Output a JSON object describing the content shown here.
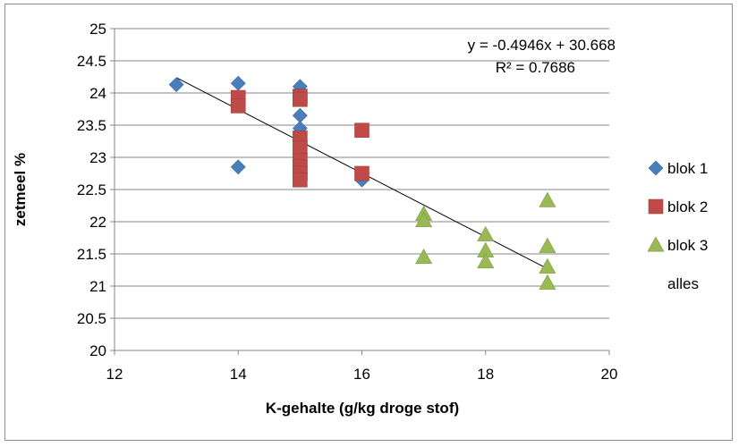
{
  "chart_data": {
    "type": "scatter",
    "title": "",
    "xlabel": "K-gehalte (g/kg droge stof)",
    "ylabel": "zetmeel %",
    "xlim": [
      12,
      20
    ],
    "ylim": [
      20,
      25
    ],
    "xticks": [
      12,
      14,
      16,
      18,
      20
    ],
    "yticks": [
      20,
      20.5,
      21,
      21.5,
      22,
      22.5,
      23,
      23.5,
      24,
      24.5,
      25
    ],
    "grid": "horizontal",
    "legend_position": "right",
    "series": [
      {
        "name": "blok 1",
        "marker": "diamond",
        "color": "#4a7ebb",
        "points": [
          [
            13,
            24.13
          ],
          [
            14,
            24.15
          ],
          [
            14,
            22.85
          ],
          [
            15,
            24.1
          ],
          [
            15,
            23.9
          ],
          [
            15,
            23.65
          ],
          [
            15,
            23.45
          ],
          [
            15,
            23.2
          ],
          [
            16,
            22.65
          ]
        ]
      },
      {
        "name": "blok 2",
        "marker": "square",
        "color": "#be4b48",
        "points": [
          [
            14,
            23.93
          ],
          [
            14,
            23.8
          ],
          [
            15,
            23.95
          ],
          [
            15,
            23.9
          ],
          [
            15,
            23.3
          ],
          [
            15,
            23.15
          ],
          [
            15,
            22.95
          ],
          [
            15,
            22.85
          ],
          [
            15,
            22.75
          ],
          [
            15,
            22.65
          ],
          [
            16,
            23.42
          ],
          [
            16,
            22.75
          ]
        ]
      },
      {
        "name": "blok 3",
        "marker": "triangle",
        "color": "#98b954",
        "points": [
          [
            17,
            22.12
          ],
          [
            17,
            22.02
          ],
          [
            17,
            21.45
          ],
          [
            18,
            21.8
          ],
          [
            18,
            21.55
          ],
          [
            18,
            21.38
          ],
          [
            19,
            22.33
          ],
          [
            19,
            21.62
          ],
          [
            19,
            21.3
          ],
          [
            19,
            21.05
          ]
        ]
      },
      {
        "name": "alles",
        "marker": "none",
        "color": "#000000",
        "points": []
      }
    ],
    "trendline": {
      "x_range": [
        13,
        19
      ],
      "slope": -0.4946,
      "intercept": 30.668,
      "color": "#000000"
    },
    "annotations": {
      "equation": "y = -0.4946x + 30.668",
      "r_squared": "R² = 0.7686"
    }
  }
}
